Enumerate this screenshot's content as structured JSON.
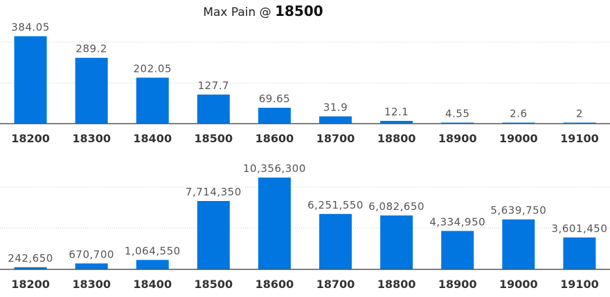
{
  "header": {
    "title_prefix": "Max Pain @",
    "max_pain_strike": "18500"
  },
  "colors": {
    "bar": "#0276e0",
    "axis": "#555555",
    "grid": "#cfcfcf"
  },
  "chart_data": [
    {
      "type": "bar",
      "categories": [
        "18200",
        "18300",
        "18400",
        "18500",
        "18600",
        "18700",
        "18800",
        "18900",
        "19000",
        "19100"
      ],
      "values": [
        384.05,
        289.2,
        202.05,
        127.7,
        69.65,
        31.9,
        12.1,
        4.55,
        2.6,
        2
      ],
      "labels": [
        "384.05",
        "289.2",
        "202.05",
        "127.7",
        "69.65",
        "31.9",
        "12.1",
        "4.55",
        "2.6",
        "2"
      ],
      "ylim": [
        0,
        440
      ],
      "grid": true
    },
    {
      "type": "bar",
      "categories": [
        "18200",
        "18300",
        "18400",
        "18500",
        "18600",
        "18700",
        "18800",
        "18900",
        "19000",
        "19100"
      ],
      "values": [
        242650,
        670700,
        1064550,
        7714350,
        10356300,
        6251550,
        6082650,
        4334950,
        5639750,
        3601450
      ],
      "labels": [
        "242,650",
        "670,700",
        "1,064,550",
        "7,714,350",
        "10,356,300",
        "6,251,550",
        "6,082,650",
        "4,334,950",
        "5,639,750",
        "3,601,450"
      ],
      "ylim": [
        0,
        12000000
      ],
      "grid": true
    }
  ]
}
